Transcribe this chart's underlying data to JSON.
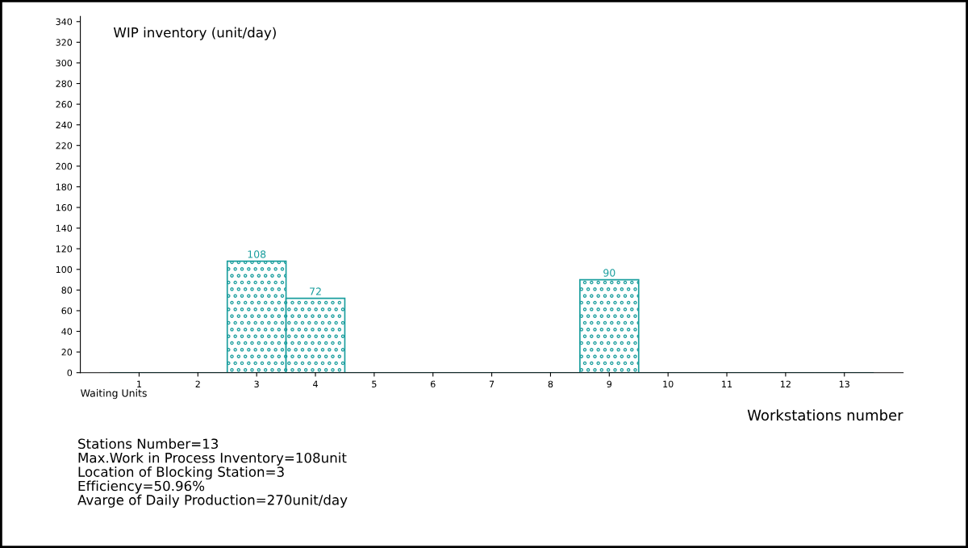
{
  "chart_data": {
    "type": "bar",
    "title": "WIP inventory (unit/day)",
    "xlabel": "Workstations number",
    "categories": [
      "1",
      "2",
      "3",
      "4",
      "5",
      "6",
      "7",
      "8",
      "9",
      "10",
      "11",
      "12",
      "13"
    ],
    "values": [
      0,
      0,
      108,
      72,
      0,
      0,
      0,
      0,
      90,
      0,
      0,
      0,
      0
    ],
    "value_labels": [
      null,
      null,
      "108",
      "72",
      null,
      null,
      null,
      null,
      "90",
      null,
      null,
      null,
      null
    ],
    "color": "#1a9e9e",
    "ylim": [
      0,
      345
    ],
    "yticks": [
      0,
      20,
      40,
      60,
      80,
      100,
      120,
      140,
      160,
      180,
      200,
      220,
      240,
      260,
      280,
      300,
      320,
      340
    ],
    "grid": false,
    "legend": false,
    "annotations": [
      "Waiting Units",
      "Stations Number=13\nMax.Work in Process Inventory=108unit\nLocation of Blocking Station=3\nEfficiency=50.96%\nAvarge of Daily Production=270unit/day"
    ]
  }
}
